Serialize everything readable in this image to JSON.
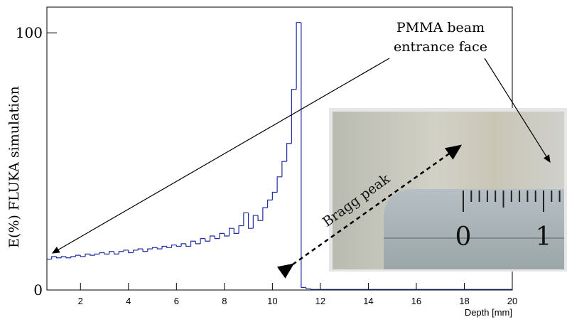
{
  "chart_data": {
    "type": "histogram",
    "x_label": "Depth [mm]",
    "y_label": "E(%) FLUKA simulation",
    "color": "#1f2f9f",
    "bins": [
      0.6,
      0.8,
      1.0,
      1.2,
      1.4,
      1.6,
      1.8,
      2.0,
      2.2,
      2.4,
      2.6,
      2.8,
      3.0,
      3.2,
      3.4,
      3.6,
      3.8,
      4.0,
      4.2,
      4.4,
      4.6,
      4.8,
      5.0,
      5.2,
      5.4,
      5.6,
      5.8,
      6.0,
      6.2,
      6.4,
      6.6,
      6.8,
      7.0,
      7.2,
      7.4,
      7.6,
      7.8,
      8.0,
      8.2,
      8.4,
      8.6,
      8.8,
      9.0,
      9.2,
      9.4,
      9.6,
      9.8,
      10.0,
      10.2,
      10.4,
      10.6,
      10.8,
      11.0,
      11.2,
      11.4,
      11.6,
      20
    ],
    "values": [
      12,
      13,
      12.5,
      13,
      12.5,
      13,
      13.5,
      13,
      14,
      13.5,
      14,
      14.5,
      14,
      15,
      14,
      15,
      15.5,
      14.5,
      15.5,
      16,
      15,
      16,
      16.5,
      16,
      17,
      16.5,
      17.5,
      17,
      18,
      17,
      19,
      18,
      20,
      19,
      21,
      20,
      22,
      21,
      24,
      22,
      25,
      30,
      24,
      29,
      27,
      32,
      35,
      38,
      44,
      50,
      57,
      78,
      104,
      1,
      0.5,
      0.2
    ],
    "xlim": [
      0.6,
      20
    ],
    "ylim": [
      0,
      110
    ],
    "xticks": [
      2,
      4,
      6,
      8,
      10,
      12,
      14,
      16,
      18,
      20
    ],
    "yticks": [
      0,
      100
    ],
    "annotation_lines": [
      "PMMA beam",
      "entrance face"
    ],
    "bragg_label": "Bragg peak",
    "photo_labels": [
      "0",
      "1"
    ]
  }
}
